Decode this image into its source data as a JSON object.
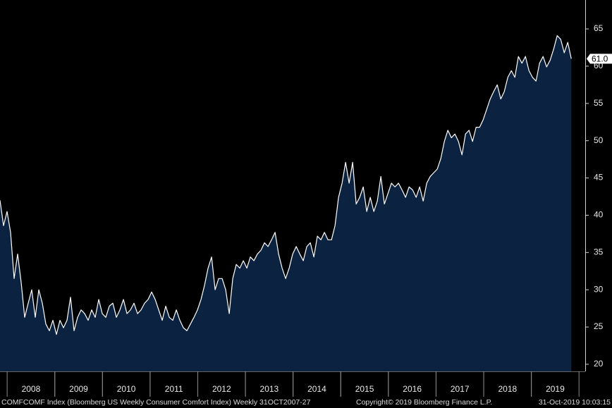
{
  "chart_data": {
    "type": "area",
    "x": [
      2007.85,
      2007.924,
      2007.998,
      2008.072,
      2008.146,
      2008.22,
      2008.294,
      2008.368,
      2008.442,
      2008.516,
      2008.59,
      2008.664,
      2008.738,
      2008.812,
      2008.886,
      2008.96,
      2009.034,
      2009.108,
      2009.182,
      2009.256,
      2009.33,
      2009.404,
      2009.478,
      2009.552,
      2009.626,
      2009.7,
      2009.774,
      2009.848,
      2009.922,
      2009.996,
      2010.07,
      2010.144,
      2010.218,
      2010.292,
      2010.366,
      2010.44,
      2010.514,
      2010.588,
      2010.662,
      2010.736,
      2010.81,
      2010.884,
      2010.958,
      2011.032,
      2011.106,
      2011.18,
      2011.254,
      2011.328,
      2011.402,
      2011.476,
      2011.55,
      2011.624,
      2011.698,
      2011.772,
      2011.846,
      2011.92,
      2011.994,
      2012.068,
      2012.142,
      2012.216,
      2012.29,
      2012.364,
      2012.438,
      2012.512,
      2012.586,
      2012.66,
      2012.734,
      2012.808,
      2012.882,
      2012.956,
      2013.03,
      2013.104,
      2013.178,
      2013.252,
      2013.326,
      2013.4,
      2013.474,
      2013.548,
      2013.622,
      2013.696,
      2013.77,
      2013.844,
      2013.918,
      2013.992,
      2014.066,
      2014.14,
      2014.214,
      2014.288,
      2014.362,
      2014.436,
      2014.51,
      2014.584,
      2014.658,
      2014.732,
      2014.806,
      2014.88,
      2014.954,
      2015.028,
      2015.102,
      2015.176,
      2015.25,
      2015.324,
      2015.398,
      2015.472,
      2015.546,
      2015.62,
      2015.694,
      2015.768,
      2015.842,
      2015.916,
      2015.99,
      2016.064,
      2016.138,
      2016.212,
      2016.286,
      2016.36,
      2016.434,
      2016.508,
      2016.582,
      2016.656,
      2016.73,
      2016.804,
      2016.878,
      2016.952,
      2017.026,
      2017.1,
      2017.174,
      2017.248,
      2017.322,
      2017.396,
      2017.47,
      2017.544,
      2017.618,
      2017.692,
      2017.766,
      2017.84,
      2017.914,
      2017.988,
      2018.062,
      2018.136,
      2018.21,
      2018.284,
      2018.358,
      2018.432,
      2018.506,
      2018.58,
      2018.654,
      2018.728,
      2018.802,
      2018.876,
      2018.95,
      2019.024,
      2019.098,
      2019.172,
      2019.246,
      2019.32,
      2019.394,
      2019.468,
      2019.542,
      2019.616,
      2019.69,
      2019.764,
      2019.838
    ],
    "values": [
      42,
      38.6,
      40.5,
      37.7,
      31.5,
      34.8,
      31,
      26.3,
      28.2,
      30,
      26.3,
      30,
      28.2,
      25.4,
      24.5,
      25.9,
      24,
      25.9,
      24.9,
      25.9,
      29,
      24.5,
      26.3,
      27.3,
      26.8,
      25.9,
      27.3,
      26.3,
      28.7,
      26.8,
      26.3,
      27.8,
      28.2,
      26.3,
      27.3,
      28.7,
      26.8,
      27.3,
      28.2,
      26.8,
      27.3,
      28.2,
      28.7,
      29.7,
      28.7,
      27.3,
      25.9,
      27.8,
      26.3,
      25.9,
      27.3,
      25.9,
      24.9,
      24.5,
      25.4,
      26.3,
      27.3,
      28.7,
      30.6,
      32.9,
      34.4,
      30,
      31.5,
      31.5,
      30,
      26.8,
      31.5,
      33.4,
      32.9,
      33.9,
      32.9,
      34.4,
      33.9,
      34.8,
      35.3,
      36.3,
      35.8,
      36.7,
      37.7,
      34.8,
      32.9,
      31.5,
      32.9,
      34.8,
      35.8,
      34.8,
      33.9,
      35.8,
      36.3,
      34.4,
      37.2,
      36.7,
      37.7,
      36.7,
      36.7,
      38.6,
      42.4,
      44.3,
      47.1,
      44.3,
      47.1,
      41.5,
      42.4,
      43.8,
      40.5,
      42.4,
      40.5,
      41.9,
      45.2,
      41.5,
      42.9,
      44.3,
      43.8,
      44.3,
      43.4,
      42.4,
      43.8,
      43.4,
      42.4,
      43.8,
      41.9,
      44.3,
      45.2,
      45.7,
      46.2,
      47.6,
      49.9,
      51.4,
      50.4,
      50.9,
      49.9,
      48.1,
      50.9,
      51.4,
      49.9,
      51.8,
      51.8,
      52.8,
      54.2,
      55.6,
      56.6,
      57.5,
      55.6,
      56.6,
      58.5,
      59.4,
      58.5,
      61.3,
      60.4,
      61.3,
      59.4,
      58.5,
      58,
      60.4,
      61.3,
      59.9,
      60.8,
      62.3,
      64.1,
      63.6,
      61.8,
      63.2,
      61
    ],
    "line_color": "#ffffff",
    "fill_color": "#0b2240",
    "xlim": [
      2007.85,
      2020.13
    ],
    "ylim": [
      19.05,
      68.88
    ],
    "yticks": [
      20,
      25,
      30,
      35,
      40,
      45,
      50,
      55,
      60,
      65
    ],
    "xticks": [
      {
        "value": 2008.5,
        "label": "2008"
      },
      {
        "value": 2009.5,
        "label": "2009"
      },
      {
        "value": 2010.5,
        "label": "2010"
      },
      {
        "value": 2011.5,
        "label": "2011"
      },
      {
        "value": 2012.5,
        "label": "2012"
      },
      {
        "value": 2013.5,
        "label": "2013"
      },
      {
        "value": 2014.5,
        "label": "2014"
      },
      {
        "value": 2015.5,
        "label": "2015"
      },
      {
        "value": 2016.5,
        "label": "2016"
      },
      {
        "value": 2017.5,
        "label": "2017"
      },
      {
        "value": 2018.5,
        "label": "2018"
      },
      {
        "value": 2019.5,
        "label": "2019"
      }
    ],
    "annotations": [
      {
        "value": 61,
        "label": "61.0"
      }
    ],
    "footer": {
      "source": "COMFCOMF Index (Bloomberg US Weekly Consumer Comfort Index)  Weekly 31OCT2007-27",
      "copyright": "Copyright© 2019 Bloomberg Finance L.P.",
      "timestamp": "31-Oct-2019 10:03:15"
    }
  }
}
